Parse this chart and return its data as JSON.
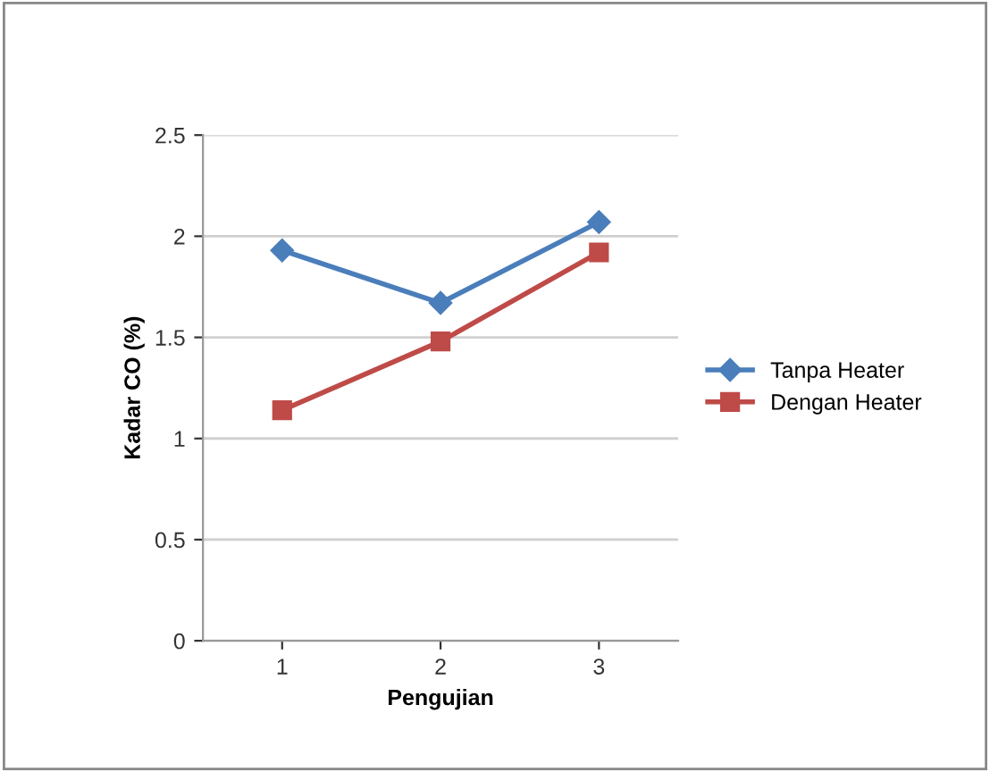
{
  "chart_data": {
    "type": "line",
    "xlabel": "Pengujian",
    "ylabel": "Kadar CO (%)",
    "categories": [
      "1",
      "2",
      "3"
    ],
    "series": [
      {
        "name": "Tanpa Heater",
        "color": "#4a7ebb",
        "values": [
          1.93,
          1.67,
          2.07
        ],
        "marker": "diamond"
      },
      {
        "name": "Dengan Heater",
        "color": "#be4b48",
        "values": [
          1.14,
          1.48,
          1.92
        ],
        "marker": "square"
      }
    ],
    "ylim": [
      0,
      2.5
    ],
    "yticks": [
      0,
      0.5,
      1,
      1.5,
      2,
      2.5
    ],
    "grid": "y",
    "legend": "right",
    "line_style": "solid"
  }
}
